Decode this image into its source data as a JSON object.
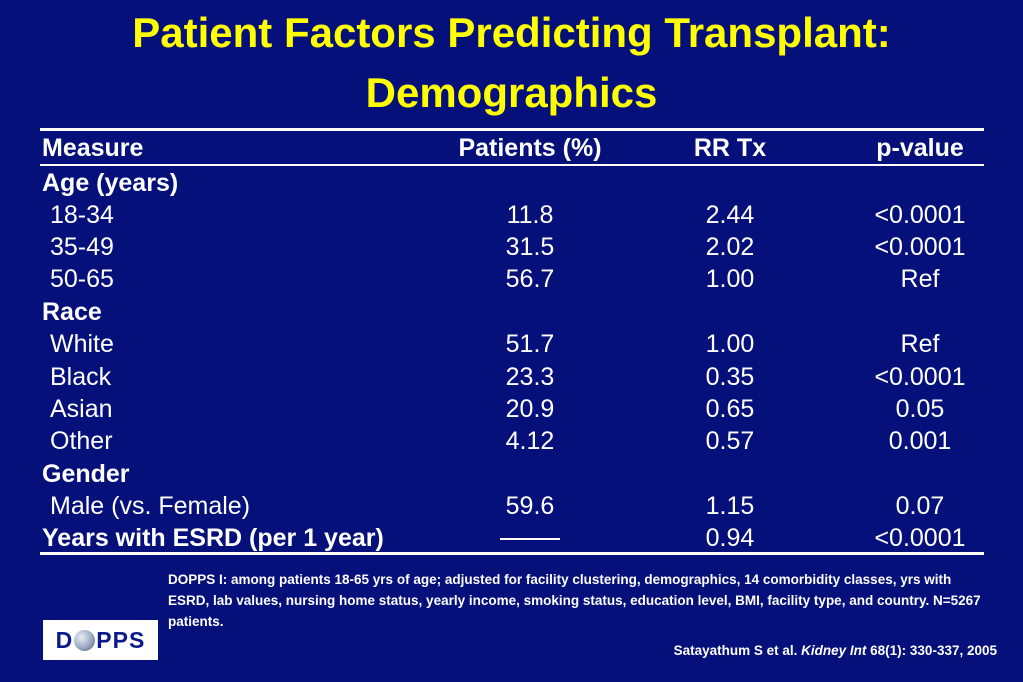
{
  "title": {
    "line1": "Patient Factors Predicting Transplant:",
    "line2": "Demographics"
  },
  "table": {
    "headers": {
      "measure": "Measure",
      "patients": "Patients (%)",
      "rr": "RR Tx",
      "pvalue": "p-value"
    },
    "rows": [
      {
        "measure": "Age (years)",
        "patients": "",
        "rr": "",
        "pvalue": ""
      },
      {
        "measure": "18-34",
        "patients": "11.8",
        "rr": "2.44",
        "pvalue": "<0.0001"
      },
      {
        "measure": "35-49",
        "patients": "31.5",
        "rr": "2.02",
        "pvalue": "<0.0001"
      },
      {
        "measure": "50-65",
        "patients": "56.7",
        "rr": "1.00",
        "pvalue": "Ref"
      },
      {
        "measure": "Race",
        "patients": "",
        "rr": "",
        "pvalue": ""
      },
      {
        "measure": "White",
        "patients": "51.7",
        "rr": "1.00",
        "pvalue": "Ref"
      },
      {
        "measure": "Black",
        "patients": "23.3",
        "rr": "0.35",
        "pvalue": "<0.0001"
      },
      {
        "measure": "Asian",
        "patients": "20.9",
        "rr": "0.65",
        "pvalue": "0.05"
      },
      {
        "measure": "Other",
        "patients": "4.12",
        "rr": "0.57",
        "pvalue": "0.001"
      },
      {
        "measure": "Gender",
        "patients": "",
        "rr": "",
        "pvalue": ""
      },
      {
        "measure": "Male (vs. Female)",
        "patients": "59.6",
        "rr": "1.15",
        "pvalue": "0.07"
      },
      {
        "measure": "Years with ESRD (per 1 year)",
        "patients": "",
        "rr": "0.94",
        "pvalue": "<0.0001"
      }
    ]
  },
  "footnote": "DOPPS I:  among patients 18-65 yrs of age;  adjusted for facility clustering, demographics, 14 comorbidity classes, yrs with ESRD, lab values, nursing home status, yearly income, smoking status, education level, BMI, facility type, and country.  N=5267 patients.",
  "citation": {
    "authors": "Satayathum S et al.",
    "journal": "Kidney Int",
    "details": "68(1): 330-337, 2005"
  },
  "logo": {
    "left": "D",
    "right": "PPS"
  },
  "colors": {
    "background": "#05107a",
    "title": "#ffff00",
    "text": "#ffffff",
    "logo_text": "#0a1a8a"
  }
}
